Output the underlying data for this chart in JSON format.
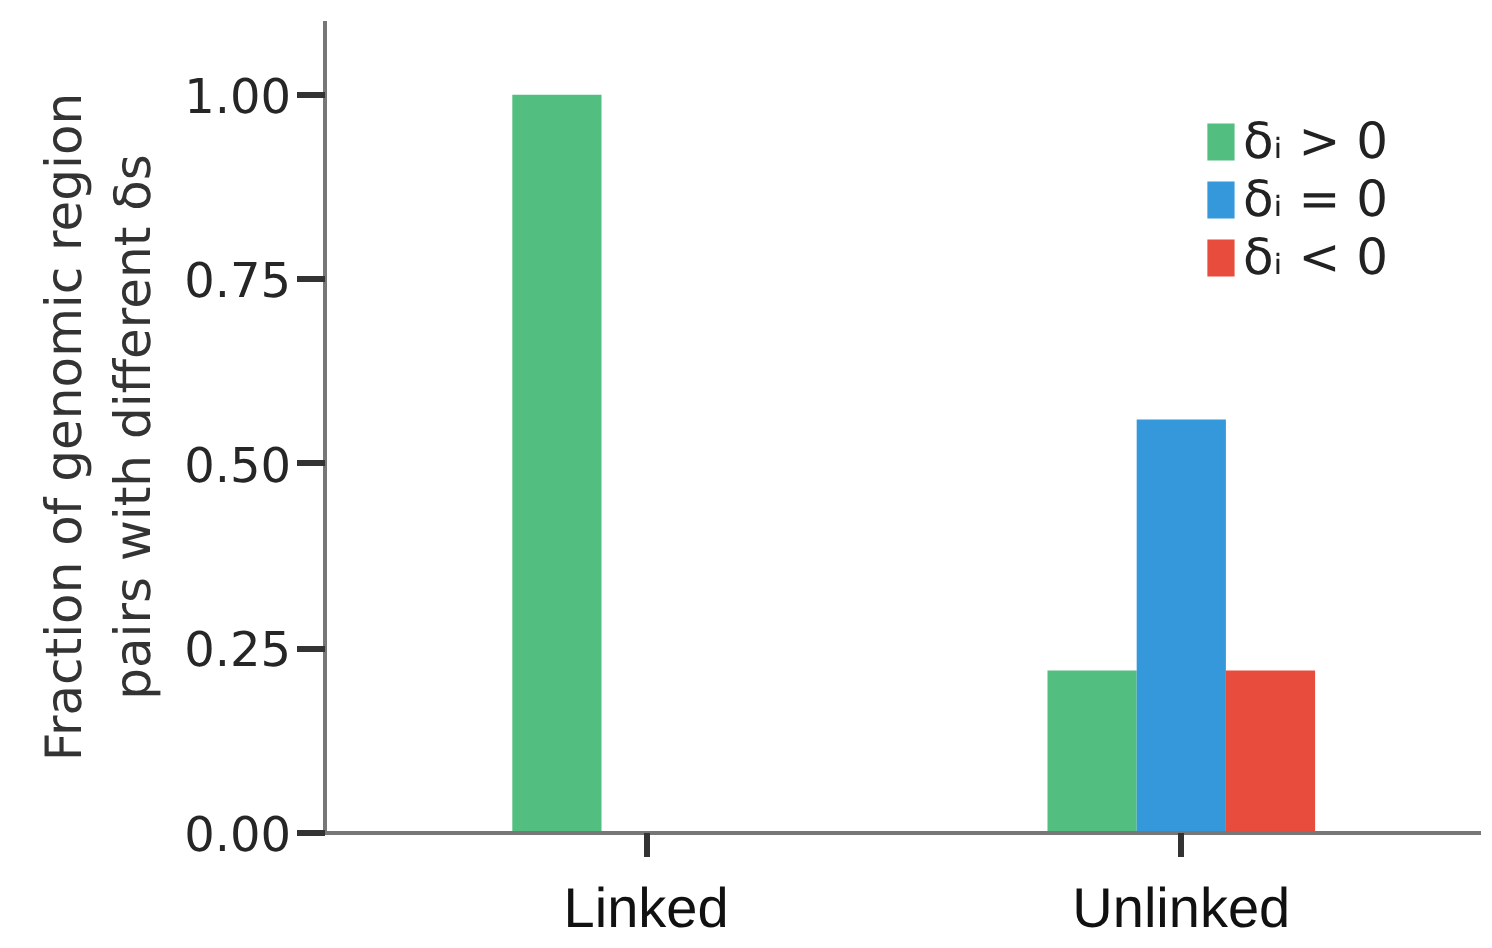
{
  "chart_data": {
    "type": "bar",
    "ylabel": "Fraction of genomic region\npairs with different δs",
    "categories": [
      "Linked",
      "Unlinked"
    ],
    "series": [
      {
        "name": "δᵢ > 0",
        "color": "#52be80",
        "values": [
          1.0,
          0.22
        ]
      },
      {
        "name": "δᵢ = 0",
        "color": "#3498db",
        "values": [
          0,
          0.56
        ]
      },
      {
        "name": "δᵢ < 0",
        "color": "#e74c3c",
        "values": [
          0,
          0.22
        ]
      }
    ],
    "ylim": [
      0,
      1.1
    ],
    "yticks": [
      {
        "value": 0,
        "label": "0.00"
      },
      0.25,
      {
        "value": 0.5,
        "label": "0.50"
      },
      0.75,
      {
        "value": 1,
        "label": "1.00"
      }
    ],
    "grid": false,
    "legend": "top right"
  }
}
